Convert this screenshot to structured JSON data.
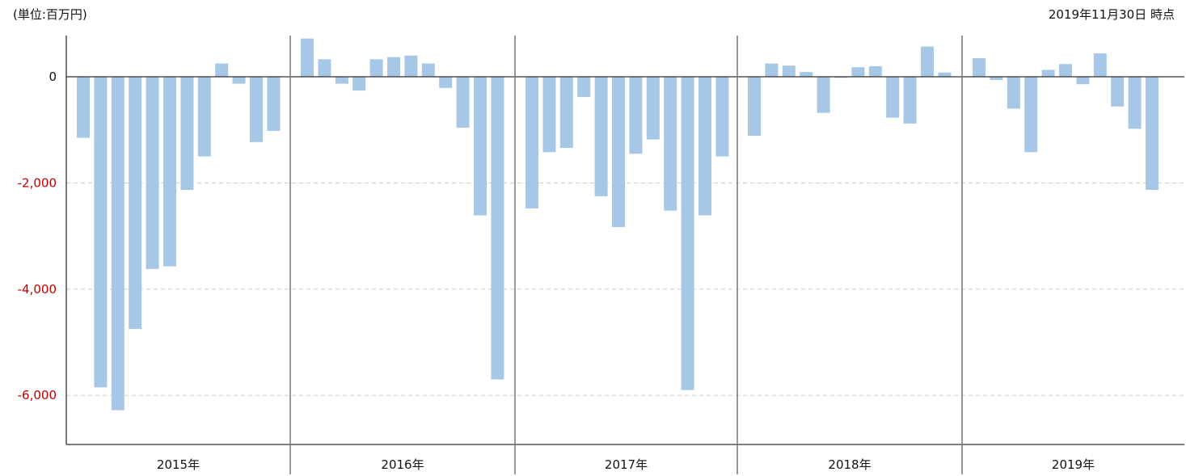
{
  "header": {
    "unit_label": "(単位:百万円)",
    "date_label": "2019年11月30日 時点"
  },
  "colors": {
    "bar": "#a7c7e7",
    "axis": "#333333",
    "separator": "#777777",
    "grid": "#cccccc",
    "zero_tick": "#111111",
    "negative_tick": "#c00000"
  },
  "chart_data": {
    "type": "bar",
    "title": "",
    "xlabel": "",
    "ylabel": "",
    "ylim": [
      -6900,
      750
    ],
    "yticks": [
      {
        "value": 0,
        "label": "0"
      },
      {
        "value": -2000,
        "label": "-2,000"
      },
      {
        "value": -4000,
        "label": "-4,000"
      },
      {
        "value": -6000,
        "label": "-6,000"
      }
    ],
    "grid": "dashed horizontal at -2000, -4000, -6000",
    "groups": [
      {
        "label": "2015年",
        "values": [
          -1150,
          -5850,
          -6280,
          -4750,
          -3620,
          -3570,
          -2130,
          -1500,
          250,
          -130,
          -1230,
          -1020
        ]
      },
      {
        "label": "2016年",
        "values": [
          720,
          330,
          -130,
          -260,
          330,
          370,
          400,
          250,
          -210,
          -960,
          -2610,
          -5700
        ]
      },
      {
        "label": "2017年",
        "values": [
          -2480,
          -1420,
          -1340,
          -380,
          -2250,
          -2830,
          -1450,
          -1180,
          -2520,
          -5900,
          -2610,
          -1500
        ]
      },
      {
        "label": "2018年",
        "values": [
          -1110,
          250,
          210,
          90,
          -680,
          -20,
          180,
          200,
          -770,
          -880,
          570,
          80
        ]
      },
      {
        "label": "2019年",
        "values": [
          350,
          -60,
          -600,
          -1420,
          130,
          240,
          -140,
          440,
          -560,
          -980,
          -2130
        ]
      }
    ]
  }
}
